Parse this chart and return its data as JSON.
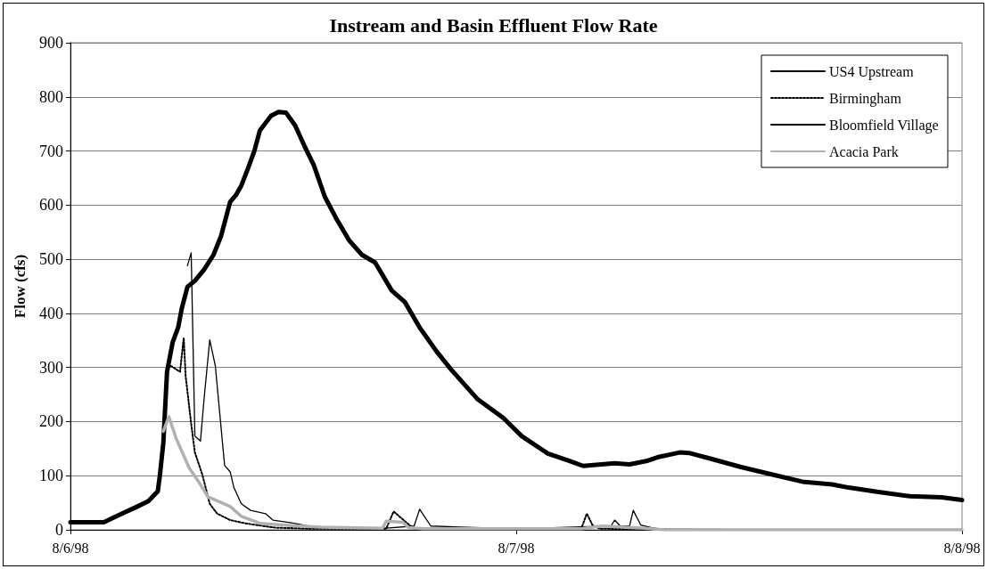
{
  "chart_data": {
    "type": "line",
    "title": "Instream and Basin Effluent Flow Rate",
    "ylabel": "Flow (cfs)",
    "xlim": [
      "1998-08-06",
      "1998-08-08"
    ],
    "xticks": [
      {
        "value": "1998-08-06",
        "label": "8/6/98"
      },
      {
        "value": "1998-08-07",
        "label": "8/7/98"
      },
      {
        "value": "1998-08-08",
        "label": "8/8/98"
      }
    ],
    "ylim": [
      0,
      900
    ],
    "yticks": [
      0,
      100,
      200,
      300,
      400,
      500,
      600,
      700,
      800,
      900
    ],
    "grid": "y",
    "legend": "top right",
    "marker": "none",
    "series": [
      {
        "name": "US4 Upstream",
        "color": "#000000",
        "line_style": "solid",
        "x": [
          "1998-08-06T00:00",
          "1998-08-06T01:48",
          "1998-08-06T02:36",
          "1998-08-06T03:36",
          "1998-08-06T04:12",
          "1998-08-06T04:42",
          "1998-08-06T04:48",
          "1998-08-06T05:00",
          "1998-08-06T05:12",
          "1998-08-06T05:30",
          "1998-08-06T05:48",
          "1998-08-06T06:00",
          "1998-08-06T06:18",
          "1998-08-06T06:42",
          "1998-08-06T07:12",
          "1998-08-06T07:42",
          "1998-08-06T08:06",
          "1998-08-06T08:36",
          "1998-08-06T08:54",
          "1998-08-06T09:12",
          "1998-08-06T09:33",
          "1998-08-06T09:54",
          "1998-08-06T10:12",
          "1998-08-06T10:48",
          "1998-08-06T11:12",
          "1998-08-06T11:36",
          "1998-08-06T12:06",
          "1998-08-06T12:36",
          "1998-08-06T13:06",
          "1998-08-06T13:42",
          "1998-08-06T14:18",
          "1998-08-06T15:00",
          "1998-08-06T15:42",
          "1998-08-06T16:24",
          "1998-08-06T17:18",
          "1998-08-06T18:00",
          "1998-08-06T18:48",
          "1998-08-06T19:42",
          "1998-08-06T20:30",
          "1998-08-06T21:54",
          "1998-08-06T23:18",
          "1998-08-07T00:18",
          "1998-08-07T01:42",
          "1998-08-07T02:54",
          "1998-08-07T03:36",
          "1998-08-07T05:18",
          "1998-08-07T06:06",
          "1998-08-07T07:00",
          "1998-08-07T07:36",
          "1998-08-07T08:48",
          "1998-08-07T09:18",
          "1998-08-07T10:24",
          "1998-08-07T12:06",
          "1998-08-07T13:48",
          "1998-08-07T15:24",
          "1998-08-07T17:00",
          "1998-08-07T17:54",
          "1998-08-07T19:30",
          "1998-08-07T21:12",
          "1998-08-07T22:54",
          "1998-08-08T00:00"
        ],
        "values": [
          14,
          14,
          27,
          43,
          53,
          71,
          96,
          160,
          292,
          346,
          374,
          410,
          449,
          460,
          481,
          508,
          542,
          606,
          618,
          636,
          667,
          700,
          738,
          765,
          772,
          771,
          747,
          709,
          674,
          615,
          576,
          535,
          508,
          494,
          442,
          421,
          374,
          330,
          296,
          242,
          207,
          173,
          141,
          127,
          118,
          123,
          121,
          127,
          134,
          143,
          142,
          132,
          116,
          102,
          89,
          84,
          78,
          70,
          62,
          60,
          55
        ]
      },
      {
        "name": "Birmingham",
        "color": "#000000",
        "line_style": "dotted",
        "x": [
          "1998-08-06T05:24",
          "1998-08-06T05:54",
          "1998-08-06T06:06",
          "1998-08-06T06:12",
          "1998-08-06T06:30",
          "1998-08-06T06:42",
          "1998-08-06T07:06",
          "1998-08-06T07:30",
          "1998-08-06T07:54",
          "1998-08-06T08:36",
          "1998-08-06T09:24",
          "1998-08-06T11:00",
          "1998-08-06T13:00",
          "1998-08-06T17:00",
          "1998-08-06T17:24",
          "1998-08-06T18:00",
          "1998-08-06T18:30",
          "1998-08-07T00:00",
          "1998-08-07T03:30",
          "1998-08-07T03:48",
          "1998-08-07T04:06",
          "1998-08-07T04:30",
          "1998-08-07T12:00",
          "1998-08-08T00:00"
        ],
        "values": [
          303,
          292,
          355,
          285,
          196,
          143,
          102,
          48,
          30,
          18,
          12,
          4,
          2,
          2,
          34,
          16,
          2,
          1,
          2,
          30,
          9,
          2,
          0,
          0
        ]
      },
      {
        "name": "Bloomfield Village",
        "color": "#000000",
        "line_style": "solid",
        "x": [
          "1998-08-06T06:18",
          "1998-08-06T06:30",
          "1998-08-06T06:42",
          "1998-08-06T07:00",
          "1998-08-06T07:12",
          "1998-08-06T07:30",
          "1998-08-06T07:48",
          "1998-08-06T08:18",
          "1998-08-06T08:36",
          "1998-08-06T08:48",
          "1998-08-06T09:12",
          "1998-08-06T09:42",
          "1998-08-06T10:30",
          "1998-08-06T10:54",
          "1998-08-06T11:54",
          "1998-08-06T13:00",
          "1998-08-06T17:00",
          "1998-08-06T18:30",
          "1998-08-06T18:48",
          "1998-08-06T19:24",
          "1998-08-07T00:00",
          "1998-08-07T05:06",
          "1998-08-07T05:18",
          "1998-08-07T05:36",
          "1998-08-07T06:06",
          "1998-08-07T06:18",
          "1998-08-07T06:42",
          "1998-08-07T07:18",
          "1998-08-07T08:00",
          "1998-08-08T00:00"
        ],
        "values": [
          488,
          512,
          173,
          164,
          244,
          351,
          303,
          119,
          107,
          78,
          48,
          36,
          30,
          18,
          13,
          6,
          3,
          7,
          38,
          7,
          2,
          7,
          18,
          7,
          7,
          36,
          9,
          4,
          0,
          0
        ]
      },
      {
        "name": "Acacia Park",
        "color": "#b0b0b0",
        "line_style": "solid",
        "x": [
          "1998-08-06T05:00",
          "1998-08-06T05:18",
          "1998-08-06T05:42",
          "1998-08-06T06:24",
          "1998-08-06T06:54",
          "1998-08-06T07:24",
          "1998-08-06T08:36",
          "1998-08-06T09:12",
          "1998-08-06T10:12",
          "1998-08-06T11:54",
          "1998-08-06T13:30",
          "1998-08-06T16:48",
          "1998-08-06T17:00",
          "1998-08-06T17:54",
          "1998-08-06T18:12",
          "1998-08-06T19:00",
          "1998-08-07T03:30",
          "1998-08-07T04:36",
          "1998-08-07T06:54",
          "1998-08-07T08:00",
          "1998-08-08T00:00"
        ],
        "values": [
          182,
          209,
          168,
          114,
          89,
          61,
          43,
          25,
          12,
          8,
          5,
          3,
          16,
          14,
          4,
          2,
          2,
          7,
          3,
          0,
          0
        ]
      }
    ]
  }
}
